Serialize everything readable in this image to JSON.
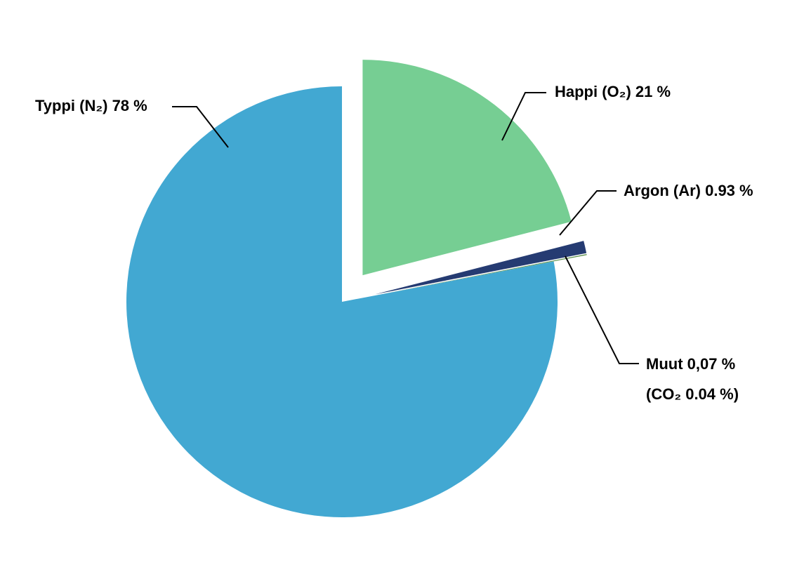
{
  "chart_data": {
    "type": "pie",
    "categories": [
      "Happi  (O₂) 21 %",
      "Argon (Ar) 0.93 %",
      "Muut 0,07 %",
      "Typpi (N₂) 78 %"
    ],
    "values": [
      21,
      0.93,
      0.07,
      78
    ],
    "colors": [
      "#76ce93",
      "#253b72",
      "#5a8f4b",
      "#42a8d2"
    ],
    "exploded": [
      true,
      true,
      true,
      false
    ],
    "annotations": [
      "(CO₂ 0.04 %)"
    ]
  }
}
